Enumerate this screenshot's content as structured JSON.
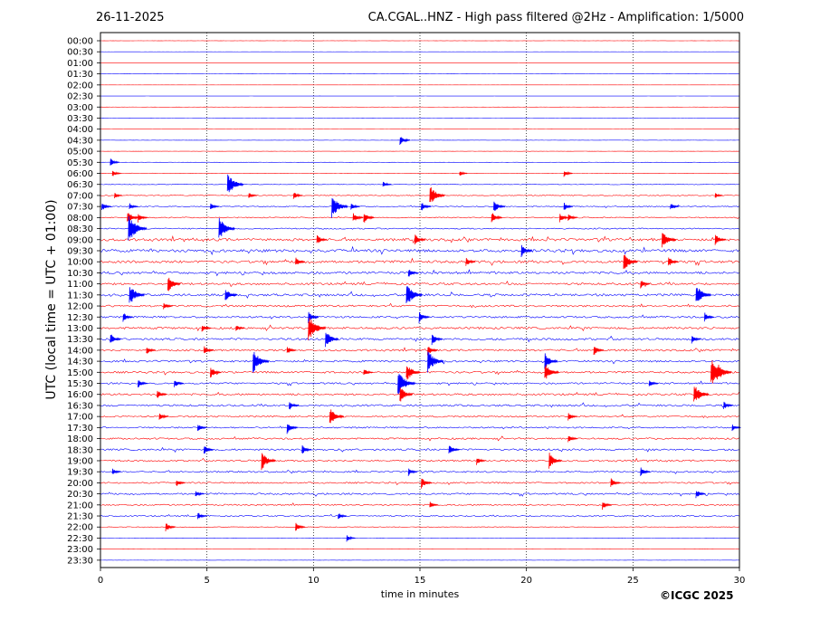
{
  "header": {
    "date": "26-11-2025",
    "title": "CA.CGAL..HNZ - High pass filtered @2Hz - Amplification: 1/5000"
  },
  "footer": {
    "copyright": "©ICGC 2025"
  },
  "chart_data": {
    "type": "line",
    "title": "CA.CGAL..HNZ - High pass filtered @2Hz - Amplification: 1/5000",
    "xlabel": "time in minutes",
    "ylabel": "UTC (local time = UTC + 01:00)",
    "xlim": [
      0,
      30
    ],
    "x_ticks": [
      0,
      5,
      10,
      15,
      20,
      25,
      30
    ],
    "vertical_gridlines_at": [
      5,
      10,
      15,
      20,
      25
    ],
    "grid": "vertical dotted",
    "row_labels": [
      "00:00",
      "00:30",
      "01:00",
      "01:30",
      "02:00",
      "02:30",
      "03:00",
      "03:30",
      "04:00",
      "04:30",
      "05:00",
      "05:30",
      "06:00",
      "06:30",
      "07:00",
      "07:30",
      "08:00",
      "08:30",
      "09:00",
      "09:30",
      "10:00",
      "10:30",
      "11:00",
      "11:30",
      "12:00",
      "12:30",
      "13:00",
      "13:30",
      "14:00",
      "14:30",
      "15:00",
      "15:30",
      "16:00",
      "16:30",
      "17:00",
      "17:30",
      "18:00",
      "18:30",
      "19:00",
      "19:30",
      "20:00",
      "20:30",
      "21:00",
      "21:30",
      "22:00",
      "22:30",
      "23:00",
      "23:30"
    ],
    "row_colors": [
      "#ff0000",
      "#0000ff"
    ],
    "row_activity": [
      0.02,
      0.02,
      0.02,
      0.02,
      0.02,
      0.02,
      0.02,
      0.03,
      0.03,
      0.05,
      0.05,
      0.08,
      0.1,
      0.15,
      0.2,
      0.25,
      0.25,
      0.3,
      0.6,
      0.65,
      0.6,
      0.55,
      0.5,
      0.55,
      0.45,
      0.45,
      0.5,
      0.5,
      0.45,
      0.45,
      0.45,
      0.4,
      0.45,
      0.45,
      0.35,
      0.35,
      0.4,
      0.45,
      0.4,
      0.35,
      0.35,
      0.4,
      0.35,
      0.3,
      0.15,
      0.05,
      0.03,
      0.02
    ],
    "events": [
      {
        "row": "04:30",
        "minute": 14.1,
        "amp": 0.9
      },
      {
        "row": "05:30",
        "minute": 0.5,
        "amp": 0.7
      },
      {
        "row": "06:00",
        "minute": 0.6,
        "amp": 0.6
      },
      {
        "row": "06:00",
        "minute": 16.9,
        "amp": 0.5
      },
      {
        "row": "06:00",
        "minute": 21.8,
        "amp": 0.6
      },
      {
        "row": "06:30",
        "minute": 6.0,
        "amp": 2.0
      },
      {
        "row": "06:30",
        "minute": 13.3,
        "amp": 0.6
      },
      {
        "row": "07:00",
        "minute": 0.7,
        "amp": 0.5
      },
      {
        "row": "07:00",
        "minute": 7.0,
        "amp": 0.6
      },
      {
        "row": "07:00",
        "minute": 9.1,
        "amp": 0.7
      },
      {
        "row": "07:00",
        "minute": 15.5,
        "amp": 1.8
      },
      {
        "row": "07:00",
        "minute": 28.9,
        "amp": 0.5
      },
      {
        "row": "07:30",
        "minute": 0.1,
        "amp": 0.8
      },
      {
        "row": "07:30",
        "minute": 1.4,
        "amp": 0.6
      },
      {
        "row": "07:30",
        "minute": 5.2,
        "amp": 0.6
      },
      {
        "row": "07:30",
        "minute": 10.9,
        "amp": 2.0
      },
      {
        "row": "07:30",
        "minute": 11.8,
        "amp": 0.7
      },
      {
        "row": "07:30",
        "minute": 15.1,
        "amp": 0.8
      },
      {
        "row": "07:30",
        "minute": 18.5,
        "amp": 1.1
      },
      {
        "row": "07:30",
        "minute": 21.8,
        "amp": 0.7
      },
      {
        "row": "07:30",
        "minute": 26.8,
        "amp": 0.6
      },
      {
        "row": "08:00",
        "minute": 1.3,
        "amp": 1.2
      },
      {
        "row": "08:00",
        "minute": 1.8,
        "amp": 0.8
      },
      {
        "row": "08:00",
        "minute": 11.9,
        "amp": 0.9
      },
      {
        "row": "08:00",
        "minute": 12.4,
        "amp": 1.0
      },
      {
        "row": "08:00",
        "minute": 18.4,
        "amp": 1.0
      },
      {
        "row": "08:00",
        "minute": 21.6,
        "amp": 0.8
      },
      {
        "row": "08:00",
        "minute": 22.0,
        "amp": 0.7
      },
      {
        "row": "08:30",
        "minute": 1.35,
        "amp": 2.4
      },
      {
        "row": "08:30",
        "minute": 5.6,
        "amp": 2.0
      },
      {
        "row": "09:00",
        "minute": 10.2,
        "amp": 0.9
      },
      {
        "row": "09:00",
        "minute": 14.8,
        "amp": 1.0
      },
      {
        "row": "09:00",
        "minute": 26.4,
        "amp": 1.6
      },
      {
        "row": "09:00",
        "minute": 28.9,
        "amp": 1.0
      },
      {
        "row": "09:30",
        "minute": 19.8,
        "amp": 1.0
      },
      {
        "row": "10:00",
        "minute": 24.6,
        "amp": 1.6
      },
      {
        "row": "10:00",
        "minute": 9.2,
        "amp": 0.8
      },
      {
        "row": "10:00",
        "minute": 17.2,
        "amp": 0.8
      },
      {
        "row": "10:00",
        "minute": 26.7,
        "amp": 0.9
      },
      {
        "row": "10:30",
        "minute": 14.5,
        "amp": 0.8
      },
      {
        "row": "11:00",
        "minute": 3.2,
        "amp": 1.4
      },
      {
        "row": "11:00",
        "minute": 25.4,
        "amp": 0.8
      },
      {
        "row": "11:30",
        "minute": 1.4,
        "amp": 1.8
      },
      {
        "row": "11:30",
        "minute": 5.9,
        "amp": 1.2
      },
      {
        "row": "11:30",
        "minute": 14.4,
        "amp": 2.0
      },
      {
        "row": "11:30",
        "minute": 28.0,
        "amp": 1.8
      },
      {
        "row": "12:00",
        "minute": 3.0,
        "amp": 0.7
      },
      {
        "row": "12:30",
        "minute": 1.1,
        "amp": 0.8
      },
      {
        "row": "12:30",
        "minute": 9.8,
        "amp": 1.0
      },
      {
        "row": "12:30",
        "minute": 15.0,
        "amp": 1.0
      },
      {
        "row": "12:30",
        "minute": 28.4,
        "amp": 0.8
      },
      {
        "row": "13:00",
        "minute": 9.8,
        "amp": 2.2
      },
      {
        "row": "13:00",
        "minute": 4.8,
        "amp": 0.7
      },
      {
        "row": "13:00",
        "minute": 6.4,
        "amp": 0.6
      },
      {
        "row": "13:30",
        "minute": 0.5,
        "amp": 1.0
      },
      {
        "row": "13:30",
        "minute": 10.6,
        "amp": 1.5
      },
      {
        "row": "13:30",
        "minute": 15.6,
        "amp": 1.0
      },
      {
        "row": "13:30",
        "minute": 27.8,
        "amp": 0.7
      },
      {
        "row": "14:00",
        "minute": 2.2,
        "amp": 0.7
      },
      {
        "row": "14:00",
        "minute": 4.9,
        "amp": 0.8
      },
      {
        "row": "14:00",
        "minute": 8.8,
        "amp": 0.7
      },
      {
        "row": "14:00",
        "minute": 15.4,
        "amp": 0.9
      },
      {
        "row": "14:00",
        "minute": 23.2,
        "amp": 0.9
      },
      {
        "row": "14:30",
        "minute": 7.2,
        "amp": 2.0
      },
      {
        "row": "14:30",
        "minute": 15.4,
        "amp": 2.0
      },
      {
        "row": "14:30",
        "minute": 20.9,
        "amp": 1.4
      },
      {
        "row": "15:00",
        "minute": 5.2,
        "amp": 1.0
      },
      {
        "row": "15:00",
        "minute": 14.4,
        "amp": 1.6
      },
      {
        "row": "15:00",
        "minute": 20.9,
        "amp": 1.6
      },
      {
        "row": "15:00",
        "minute": 28.7,
        "amp": 2.4
      },
      {
        "row": "15:00",
        "minute": 29.0,
        "amp": 1.6
      },
      {
        "row": "15:00",
        "minute": 12.4,
        "amp": 0.7
      },
      {
        "row": "15:30",
        "minute": 14.0,
        "amp": 2.2
      },
      {
        "row": "15:30",
        "minute": 1.8,
        "amp": 0.8
      },
      {
        "row": "15:30",
        "minute": 3.5,
        "amp": 0.8
      },
      {
        "row": "15:30",
        "minute": 25.8,
        "amp": 0.7
      },
      {
        "row": "16:00",
        "minute": 14.1,
        "amp": 1.4
      },
      {
        "row": "16:00",
        "minute": 27.9,
        "amp": 1.8
      },
      {
        "row": "16:00",
        "minute": 2.7,
        "amp": 0.8
      },
      {
        "row": "16:30",
        "minute": 8.9,
        "amp": 0.8
      },
      {
        "row": "16:30",
        "minute": 29.3,
        "amp": 0.7
      },
      {
        "row": "17:00",
        "minute": 10.8,
        "amp": 1.6
      },
      {
        "row": "17:00",
        "minute": 2.8,
        "amp": 0.7
      },
      {
        "row": "17:00",
        "minute": 22.0,
        "amp": 0.7
      },
      {
        "row": "17:30",
        "minute": 4.6,
        "amp": 0.7
      },
      {
        "row": "17:30",
        "minute": 8.8,
        "amp": 1.0
      },
      {
        "row": "17:30",
        "minute": 29.7,
        "amp": 0.6
      },
      {
        "row": "18:00",
        "minute": 22.0,
        "amp": 0.7
      },
      {
        "row": "18:30",
        "minute": 4.9,
        "amp": 0.8
      },
      {
        "row": "18:30",
        "minute": 16.4,
        "amp": 1.0
      },
      {
        "row": "18:30",
        "minute": 9.5,
        "amp": 0.8
      },
      {
        "row": "19:00",
        "minute": 7.6,
        "amp": 1.6
      },
      {
        "row": "19:00",
        "minute": 21.1,
        "amp": 1.4
      },
      {
        "row": "19:00",
        "minute": 17.7,
        "amp": 0.7
      },
      {
        "row": "19:30",
        "minute": 0.6,
        "amp": 0.6
      },
      {
        "row": "19:30",
        "minute": 14.5,
        "amp": 0.7
      },
      {
        "row": "19:30",
        "minute": 25.4,
        "amp": 0.8
      },
      {
        "row": "20:00",
        "minute": 15.1,
        "amp": 1.0
      },
      {
        "row": "20:00",
        "minute": 24.0,
        "amp": 0.8
      },
      {
        "row": "20:00",
        "minute": 3.6,
        "amp": 0.7
      },
      {
        "row": "20:30",
        "minute": 28.0,
        "amp": 0.8
      },
      {
        "row": "20:30",
        "minute": 4.5,
        "amp": 0.6
      },
      {
        "row": "21:00",
        "minute": 23.6,
        "amp": 0.8
      },
      {
        "row": "21:00",
        "minute": 15.5,
        "amp": 0.6
      },
      {
        "row": "21:30",
        "minute": 4.6,
        "amp": 0.7
      },
      {
        "row": "21:30",
        "minute": 11.2,
        "amp": 0.6
      },
      {
        "row": "22:00",
        "minute": 3.1,
        "amp": 0.8
      },
      {
        "row": "22:00",
        "minute": 9.2,
        "amp": 0.8
      },
      {
        "row": "22:30",
        "minute": 11.6,
        "amp": 0.6
      }
    ]
  }
}
